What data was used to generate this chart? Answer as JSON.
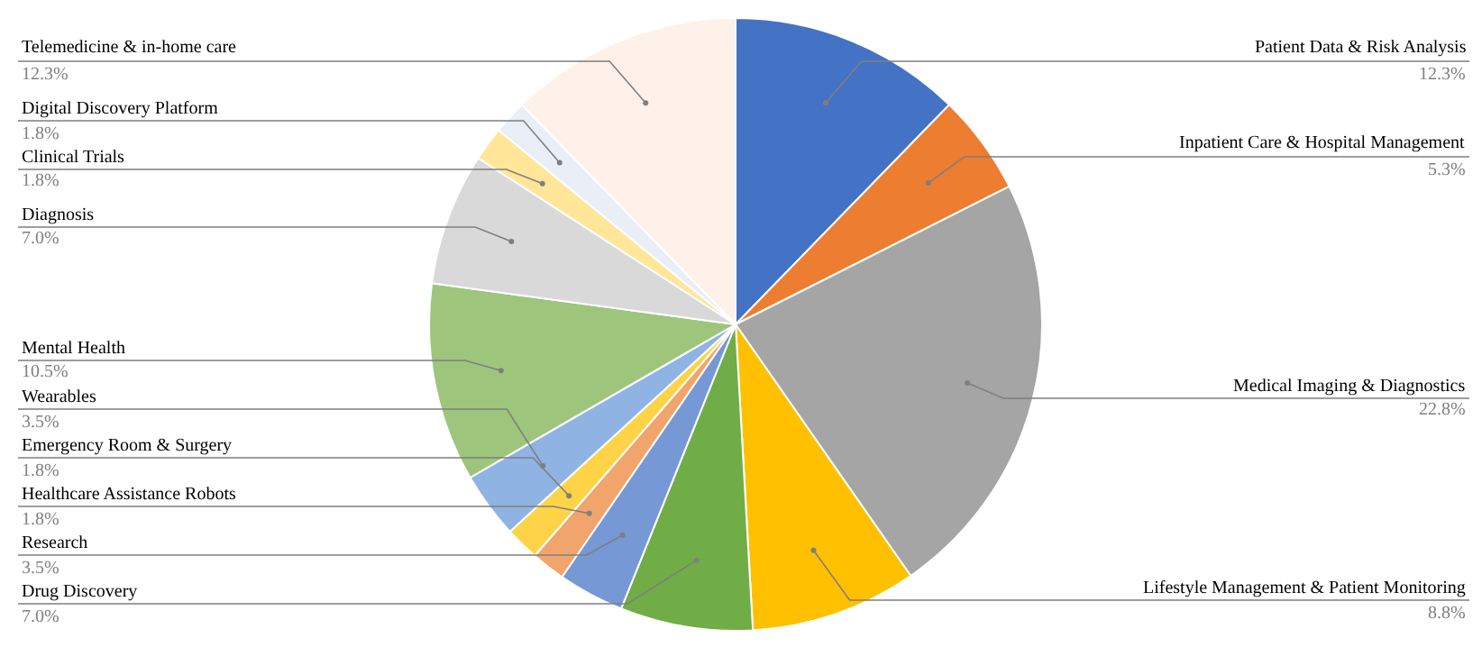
{
  "chart_data": {
    "type": "pie",
    "categories": [
      "Patient Data & Risk Analysis",
      "Inpatient Care & Hospital Management",
      "Medical Imaging & Diagnostics",
      "Lifestyle Management & Patient Monitoring",
      "Drug Discovery",
      "Research",
      "Healthcare Assistance Robots",
      "Emergency Room & Surgery",
      "Wearables",
      "Mental Health",
      "Diagnosis",
      "Clinical Trials",
      "Digital Discovery Platform",
      "Telemedicine & in-home care"
    ],
    "values": [
      12.3,
      5.3,
      22.8,
      8.8,
      7.0,
      3.5,
      1.8,
      1.8,
      3.5,
      10.5,
      7.0,
      1.8,
      1.8,
      12.3
    ],
    "value_labels": [
      "12.3%",
      "5.3%",
      "22.8%",
      "8.8%",
      "7.0%",
      "3.5%",
      "1.8%",
      "1.8%",
      "3.5%",
      "10.5%",
      "7.0%",
      "1.8%",
      "1.8%",
      "12.3%"
    ],
    "colors": [
      "#4472c4",
      "#ed7d31",
      "#a5a5a5",
      "#ffc000",
      "#70ad47",
      "#7698d4",
      "#f1a46b",
      "#ffd347",
      "#8fb4e3",
      "#9dc67c",
      "#d9d9d9",
      "#ffe699",
      "#e9eef7",
      "#fdf1e9"
    ]
  }
}
